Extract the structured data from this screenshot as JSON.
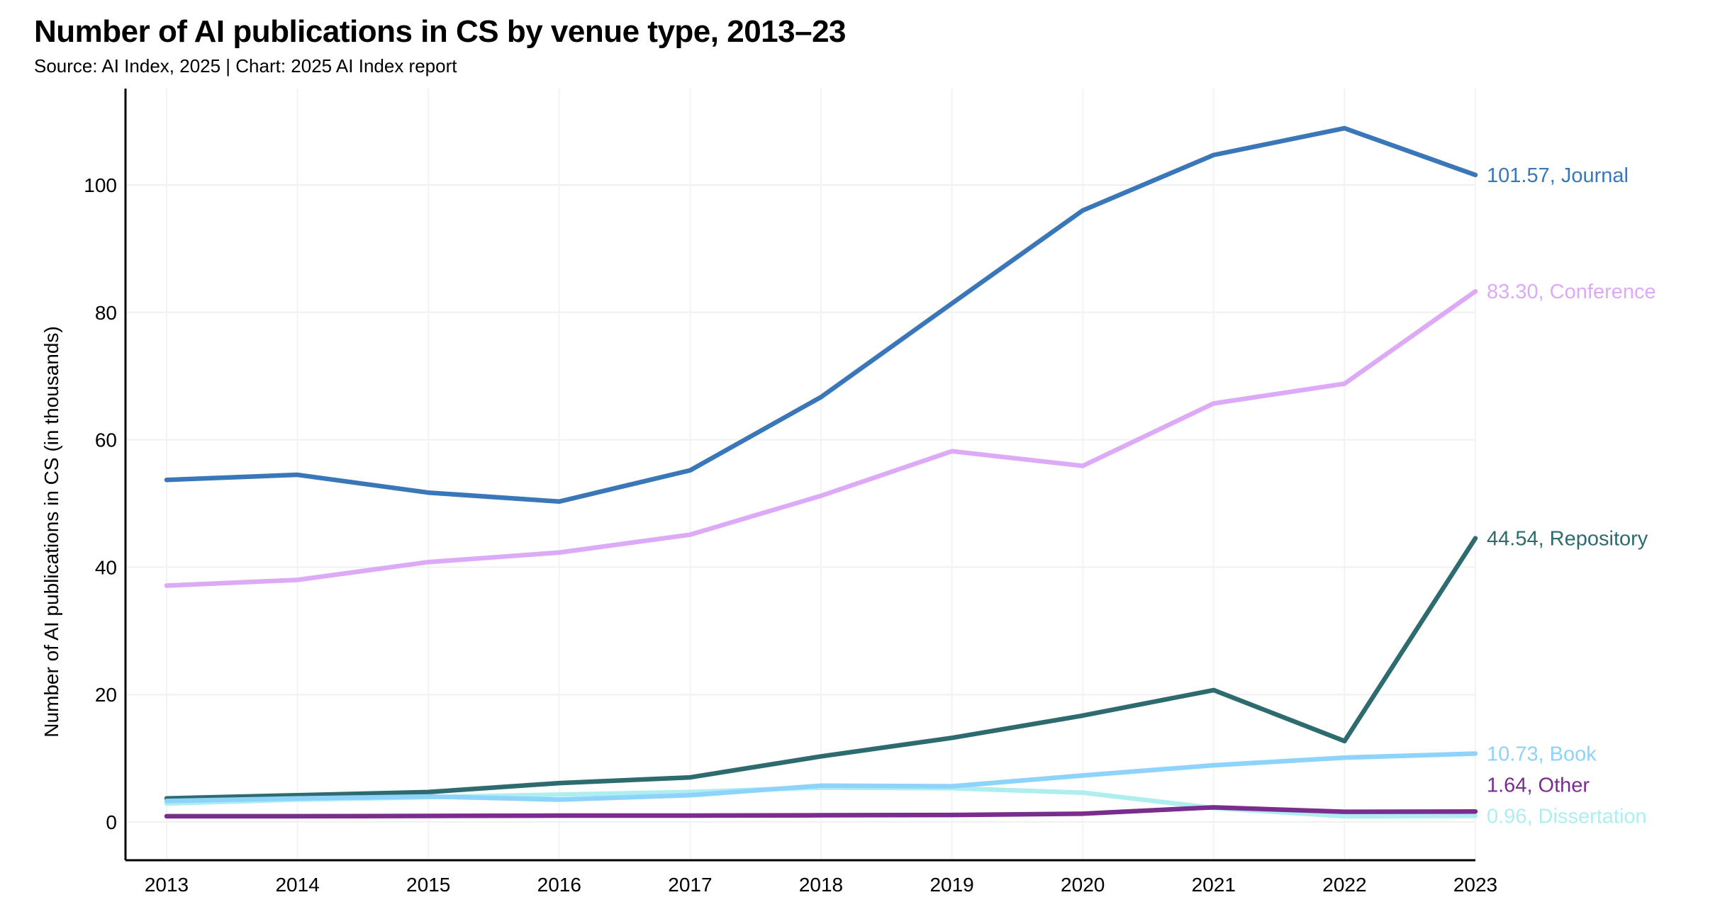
{
  "title": "Number of AI publications in CS by venue type, 2013–23",
  "subtitle": "Source: AI Index, 2025 | Chart: 2025 AI Index report",
  "chart_data": {
    "type": "line",
    "title": "Number of AI publications in CS by venue type, 2013–23",
    "xlabel": "",
    "ylabel": "Number of AI publications in CS (in thousands)",
    "x": [
      2013,
      2014,
      2015,
      2016,
      2017,
      2018,
      2019,
      2020,
      2021,
      2022,
      2023
    ],
    "ylim": [
      -6,
      115
    ],
    "yticks": [
      0,
      20,
      40,
      60,
      80,
      100
    ],
    "grid": true,
    "legend": "end-of-line labels",
    "series": [
      {
        "name": "Journal",
        "color": "#3a77b9",
        "end_label": "101.57, Journal",
        "values": [
          53.7,
          54.5,
          51.7,
          50.3,
          55.2,
          66.7,
          81.4,
          96.0,
          104.7,
          108.9,
          101.57
        ]
      },
      {
        "name": "Conference",
        "color": "#dcaaf6",
        "end_label": "83.30, Conference",
        "values": [
          37.1,
          38.0,
          40.8,
          42.3,
          45.1,
          51.2,
          58.2,
          55.9,
          65.7,
          68.8,
          83.3
        ]
      },
      {
        "name": "Repository",
        "color": "#2e6b6f",
        "end_label": "44.54, Repository",
        "values": [
          3.7,
          4.2,
          4.7,
          6.1,
          7.0,
          10.3,
          13.2,
          16.7,
          20.7,
          12.7,
          44.54
        ]
      },
      {
        "name": "Dissertation",
        "color": "#aeeeee",
        "end_label": "0.96, Dissertation",
        "values": [
          2.9,
          3.5,
          3.9,
          4.3,
          4.7,
          5.4,
          5.3,
          4.6,
          2.2,
          0.9,
          0.96
        ]
      },
      {
        "name": "Book",
        "color": "#8dd3fb",
        "end_label": "10.73, Book",
        "values": [
          3.3,
          3.7,
          4.0,
          3.5,
          4.2,
          5.7,
          5.6,
          7.3,
          8.9,
          10.1,
          10.73
        ]
      },
      {
        "name": "Other",
        "color": "#7b2d8d",
        "end_label": "1.64, Other",
        "values": [
          0.9,
          0.9,
          0.95,
          1.0,
          1.0,
          1.05,
          1.1,
          1.3,
          2.3,
          1.6,
          1.64
        ]
      }
    ]
  }
}
